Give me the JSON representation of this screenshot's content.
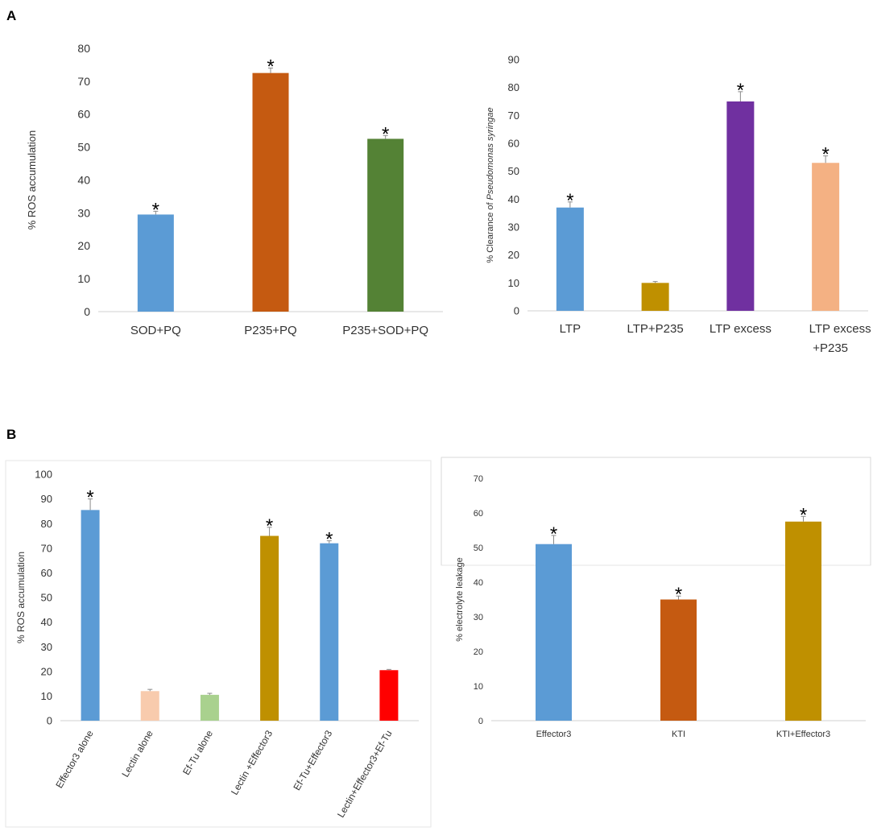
{
  "panels": {
    "a": "A",
    "b": "B"
  },
  "chart_data": [
    {
      "type": "bar",
      "ylabel": "% ROS accumulation",
      "ylabel_italic_part": "",
      "ylim": [
        0,
        80
      ],
      "yticks": [
        0,
        10,
        20,
        30,
        40,
        50,
        60,
        70,
        80
      ],
      "categories": [
        "SOD+PQ",
        "P235+PQ",
        "P235+SOD+PQ"
      ],
      "values": [
        29.5,
        72.5,
        52.5
      ],
      "errors": [
        1.0,
        1.5,
        1.0
      ],
      "colors": [
        "#5b9bd5",
        "#c55a11",
        "#548235"
      ],
      "significant": [
        true,
        true,
        true
      ]
    },
    {
      "type": "bar",
      "ylabel": "% Clearance of ",
      "ylabel_italic_part": "Pseudomonas syringae",
      "ylim": [
        0,
        90
      ],
      "yticks": [
        0,
        10,
        20,
        30,
        40,
        50,
        60,
        70,
        80,
        90
      ],
      "categories": [
        "LTP",
        "LTP+P235",
        "LTP excess",
        "LTP excess +P235"
      ],
      "values": [
        37,
        10,
        75,
        53
      ],
      "errors": [
        2.0,
        0.5,
        3.5,
        2.5
      ],
      "colors": [
        "#5b9bd5",
        "#bf9000",
        "#7030a0",
        "#f4b183"
      ],
      "significant": [
        true,
        false,
        true,
        true
      ]
    },
    {
      "type": "bar",
      "ylabel": "% ROS accumulation",
      "ylabel_italic_part": "",
      "ylim": [
        0,
        100
      ],
      "yticks": [
        0,
        10,
        20,
        30,
        40,
        50,
        60,
        70,
        80,
        90,
        100
      ],
      "categories": [
        "Effector3 alone",
        "Lectin alone",
        "Ef-Tu alone",
        "Lectin +Effector3",
        "Ef-Tu+Effector3",
        "Lectin+Effector3+Ef-Tu"
      ],
      "values": [
        85.5,
        12,
        10.5,
        75,
        72,
        20.5
      ],
      "errors": [
        4.5,
        0.7,
        0.6,
        3.5,
        1.0,
        0.3
      ],
      "colors": [
        "#5b9bd5",
        "#f8cbad",
        "#a9d18e",
        "#bf9000",
        "#5b9bd5",
        "#ff0000"
      ],
      "significant": [
        true,
        false,
        false,
        true,
        true,
        false
      ]
    },
    {
      "type": "bar",
      "ylabel": "% electrolyte leakage",
      "ylabel_italic_part": "",
      "ylim": [
        0,
        70
      ],
      "yticks": [
        0,
        10,
        20,
        30,
        40,
        50,
        60,
        70
      ],
      "categories": [
        "Effector3",
        "KTI",
        "KTI+Effector3"
      ],
      "values": [
        51,
        35,
        57.5
      ],
      "errors": [
        2.5,
        1.0,
        1.5
      ],
      "colors": [
        "#5b9bd5",
        "#c55a11",
        "#bf9000"
      ],
      "significant": [
        true,
        true,
        true
      ]
    }
  ],
  "significance_marker": "*"
}
